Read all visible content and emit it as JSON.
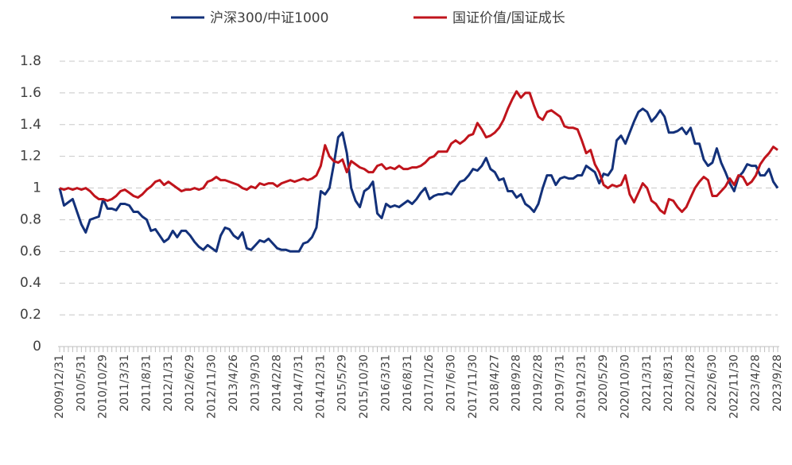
{
  "chart_data": {
    "type": "line",
    "categories": [
      "2009/12/31",
      null,
      null,
      null,
      null,
      "2010/5/31",
      null,
      null,
      null,
      null,
      "2010/10/29",
      null,
      null,
      null,
      null,
      "2011/3/31",
      null,
      null,
      null,
      null,
      "2011/8/31",
      null,
      null,
      null,
      null,
      "2012/1/31",
      null,
      null,
      null,
      null,
      "2012/6/29",
      null,
      null,
      null,
      null,
      "2012/11/30",
      null,
      null,
      null,
      null,
      "2013/4/26",
      null,
      null,
      null,
      null,
      "2013/9/30",
      null,
      null,
      null,
      null,
      "2014/2/28",
      null,
      null,
      null,
      null,
      "2014/7/31",
      null,
      null,
      null,
      null,
      "2014/12/31",
      null,
      null,
      null,
      null,
      "2015/5/29",
      null,
      null,
      null,
      null,
      "2015/10/30",
      null,
      null,
      null,
      null,
      "2016/3/31",
      null,
      null,
      null,
      null,
      "2016/8/31",
      null,
      null,
      null,
      null,
      "2017/1/26",
      null,
      null,
      null,
      null,
      "2017/6/30",
      null,
      null,
      null,
      null,
      "2017/11/30",
      null,
      null,
      null,
      null,
      "2018/4/27",
      null,
      null,
      null,
      null,
      "2018/9/28",
      null,
      null,
      null,
      null,
      "2019/2/28",
      null,
      null,
      null,
      null,
      "2019/7/31",
      null,
      null,
      null,
      null,
      "2019/12/31",
      null,
      null,
      null,
      null,
      "2020/5/29",
      null,
      null,
      null,
      null,
      "2020/10/30",
      null,
      null,
      null,
      null,
      "2021/3/31",
      null,
      null,
      null,
      null,
      "2021/8/31",
      null,
      null,
      null,
      null,
      "2022/1/28",
      null,
      null,
      null,
      null,
      "2022/6/30",
      null,
      null,
      null,
      null,
      "2022/11/30",
      null,
      null,
      null,
      null,
      "2023/4/28",
      null,
      null,
      null,
      null,
      "2023/9/28"
    ],
    "series": [
      {
        "name": "沪深300/中证1000",
        "color": "#13317a",
        "values": [
          1.0,
          0.89,
          0.91,
          0.93,
          0.85,
          0.77,
          0.72,
          0.8,
          0.81,
          0.82,
          0.93,
          0.87,
          0.87,
          0.86,
          0.9,
          0.9,
          0.89,
          0.85,
          0.85,
          0.82,
          0.8,
          0.73,
          0.74,
          0.7,
          0.66,
          0.68,
          0.73,
          0.69,
          0.73,
          0.73,
          0.7,
          0.66,
          0.63,
          0.61,
          0.64,
          0.62,
          0.6,
          0.7,
          0.75,
          0.74,
          0.7,
          0.68,
          0.72,
          0.62,
          0.61,
          0.64,
          0.67,
          0.66,
          0.68,
          0.65,
          0.62,
          0.61,
          0.61,
          0.6,
          0.6,
          0.6,
          0.65,
          0.66,
          0.69,
          0.75,
          0.98,
          0.96,
          1.0,
          1.15,
          1.32,
          1.35,
          1.22,
          1.0,
          0.92,
          0.88,
          0.98,
          1.0,
          1.04,
          0.84,
          0.81,
          0.9,
          0.88,
          0.89,
          0.88,
          0.9,
          0.92,
          0.9,
          0.93,
          0.97,
          1.0,
          0.93,
          0.95,
          0.96,
          0.96,
          0.97,
          0.96,
          1.0,
          1.04,
          1.05,
          1.08,
          1.12,
          1.11,
          1.14,
          1.19,
          1.12,
          1.1,
          1.05,
          1.06,
          0.98,
          0.98,
          0.94,
          0.96,
          0.9,
          0.88,
          0.85,
          0.9,
          1.0,
          1.08,
          1.08,
          1.02,
          1.06,
          1.07,
          1.06,
          1.06,
          1.08,
          1.08,
          1.14,
          1.12,
          1.1,
          1.03,
          1.09,
          1.08,
          1.12,
          1.3,
          1.33,
          1.28,
          1.35,
          1.42,
          1.48,
          1.5,
          1.48,
          1.42,
          1.45,
          1.49,
          1.45,
          1.35,
          1.35,
          1.36,
          1.38,
          1.34,
          1.38,
          1.28,
          1.28,
          1.18,
          1.14,
          1.16,
          1.25,
          1.16,
          1.1,
          1.03,
          0.98,
          1.07,
          1.1,
          1.15,
          1.14,
          1.14,
          1.08,
          1.08,
          1.12,
          1.04,
          1.0
        ]
      },
      {
        "name": "国证价值/国证成长",
        "color": "#c0141c",
        "values": [
          1.0,
          0.99,
          1.0,
          0.99,
          1.0,
          0.99,
          1.0,
          0.98,
          0.95,
          0.93,
          0.93,
          0.92,
          0.93,
          0.95,
          0.98,
          0.99,
          0.97,
          0.95,
          0.94,
          0.96,
          0.99,
          1.01,
          1.04,
          1.05,
          1.02,
          1.04,
          1.02,
          1.0,
          0.98,
          0.99,
          0.99,
          1.0,
          0.99,
          1.0,
          1.04,
          1.05,
          1.07,
          1.05,
          1.05,
          1.04,
          1.03,
          1.02,
          1.0,
          0.99,
          1.01,
          1.0,
          1.03,
          1.02,
          1.03,
          1.03,
          1.01,
          1.03,
          1.04,
          1.05,
          1.04,
          1.05,
          1.06,
          1.05,
          1.06,
          1.08,
          1.14,
          1.27,
          1.2,
          1.17,
          1.16,
          1.18,
          1.1,
          1.17,
          1.15,
          1.13,
          1.12,
          1.1,
          1.1,
          1.14,
          1.15,
          1.12,
          1.13,
          1.12,
          1.14,
          1.12,
          1.12,
          1.13,
          1.13,
          1.14,
          1.16,
          1.19,
          1.2,
          1.23,
          1.23,
          1.23,
          1.28,
          1.3,
          1.28,
          1.3,
          1.33,
          1.34,
          1.41,
          1.37,
          1.32,
          1.33,
          1.35,
          1.38,
          1.43,
          1.5,
          1.56,
          1.61,
          1.57,
          1.6,
          1.6,
          1.52,
          1.45,
          1.43,
          1.48,
          1.49,
          1.47,
          1.45,
          1.39,
          1.38,
          1.38,
          1.37,
          1.3,
          1.22,
          1.24,
          1.15,
          1.1,
          1.02,
          1.0,
          1.02,
          1.01,
          1.02,
          1.08,
          0.96,
          0.91,
          0.97,
          1.03,
          1.0,
          0.92,
          0.9,
          0.86,
          0.84,
          0.93,
          0.92,
          0.88,
          0.85,
          0.88,
          0.94,
          1.0,
          1.04,
          1.07,
          1.05,
          0.95,
          0.95,
          0.98,
          1.01,
          1.06,
          1.02,
          1.08,
          1.07,
          1.02,
          1.04,
          1.08,
          1.15,
          1.19,
          1.22,
          1.26,
          1.24
        ]
      }
    ],
    "ylim": [
      0,
      1.8
    ],
    "yticks": [
      0,
      0.2,
      0.4,
      0.6,
      0.8,
      1,
      1.2,
      1.4,
      1.6,
      1.8
    ],
    "grid": true
  }
}
